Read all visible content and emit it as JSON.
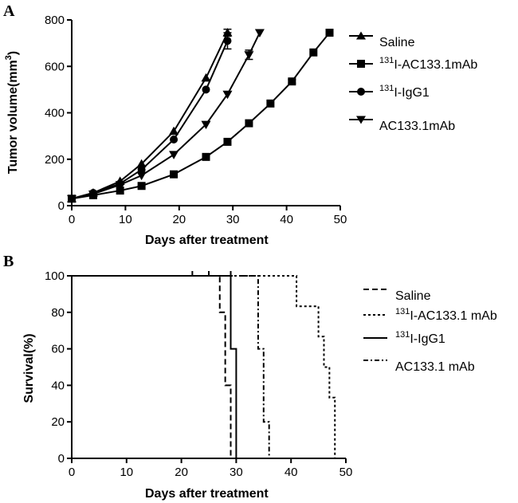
{
  "chart_data": [
    {
      "panel": "A",
      "type": "line",
      "xlabel": "Days after treatment",
      "ylabel": "Tumor volume(mm",
      "ylabel_sup": "3",
      "ylabel_end": ")",
      "xlim": [
        0,
        50
      ],
      "ylim": [
        0,
        800
      ],
      "xticks": [
        0,
        10,
        20,
        30,
        40,
        50
      ],
      "yticks": [
        0,
        200,
        400,
        600,
        800
      ],
      "series": [
        {
          "name": "Saline",
          "sup": "",
          "marker": "triangle-up",
          "x": [
            0,
            4,
            9,
            13,
            19,
            25,
            29
          ],
          "y": [
            30,
            55,
            105,
            180,
            320,
            550,
            745
          ],
          "err": [
            0,
            0,
            0,
            0,
            0,
            0,
            15
          ]
        },
        {
          "name": "I-AC133.1mAb",
          "sup": "131",
          "marker": "square",
          "x": [
            0,
            4,
            9,
            13,
            19,
            25,
            29,
            33,
            37,
            41,
            45,
            48
          ],
          "y": [
            30,
            45,
            65,
            85,
            135,
            210,
            275,
            355,
            440,
            535,
            660,
            745
          ],
          "err": [
            0,
            0,
            0,
            0,
            0,
            0,
            0,
            0,
            0,
            8,
            0,
            0
          ]
        },
        {
          "name": "I-IgG1",
          "sup": "131",
          "marker": "circle",
          "x": [
            0,
            4,
            9,
            13,
            19,
            25,
            29
          ],
          "y": [
            30,
            55,
            95,
            155,
            285,
            500,
            710
          ],
          "err": [
            0,
            0,
            0,
            0,
            0,
            0,
            35
          ]
        },
        {
          "name": "AC133.1mAb",
          "sup": "",
          "marker": "triangle-down",
          "x": [
            0,
            4,
            9,
            13,
            19,
            25,
            29,
            33,
            35
          ],
          "y": [
            30,
            50,
            90,
            130,
            220,
            350,
            480,
            650,
            745
          ],
          "err": [
            0,
            0,
            0,
            0,
            0,
            0,
            0,
            20,
            0
          ]
        }
      ]
    },
    {
      "panel": "B",
      "type": "line",
      "subtype": "survival-step",
      "xlabel": "Days after treatment",
      "ylabel": "Survival(%)",
      "xlim": [
        0,
        50
      ],
      "ylim": [
        0,
        100
      ],
      "xticks": [
        0,
        10,
        20,
        30,
        40,
        50
      ],
      "yticks": [
        0,
        20,
        40,
        60,
        80,
        100
      ],
      "series": [
        {
          "name": "Saline",
          "sup": "",
          "dash": "7,4",
          "steps": [
            [
              0,
              100
            ],
            [
              27,
              100
            ],
            [
              27,
              80
            ],
            [
              28,
              80
            ],
            [
              28,
              40
            ],
            [
              29,
              40
            ],
            [
              29,
              0
            ],
            [
              30,
              0
            ]
          ],
          "censored": [
            [
              22,
              100
            ],
            [
              25,
              100
            ]
          ]
        },
        {
          "name": "I-AC133.1 mAb",
          "sup": "131",
          "dash": "3,3",
          "steps": [
            [
              0,
              100
            ],
            [
              41,
              100
            ],
            [
              41,
              83.3
            ],
            [
              45,
              83.3
            ],
            [
              45,
              66.7
            ],
            [
              46,
              66.7
            ],
            [
              46,
              50
            ],
            [
              47,
              50
            ],
            [
              47,
              33.3
            ],
            [
              48,
              33.3
            ],
            [
              48,
              0
            ]
          ],
          "censored": []
        },
        {
          "name": "I-IgG1",
          "sup": "131",
          "dash": "",
          "steps": [
            [
              0,
              100
            ],
            [
              29,
              100
            ],
            [
              29,
              60
            ],
            [
              30,
              60
            ],
            [
              30,
              0
            ]
          ],
          "censored": [
            [
              29,
              100
            ]
          ]
        },
        {
          "name": "AC133.1 mAb",
          "sup": "",
          "dash": "6,3,2,3",
          "steps": [
            [
              0,
              100
            ],
            [
              34,
              100
            ],
            [
              34,
              60
            ],
            [
              35,
              60
            ],
            [
              35,
              20
            ],
            [
              36,
              20
            ],
            [
              36,
              0
            ]
          ],
          "censored": []
        }
      ]
    }
  ]
}
